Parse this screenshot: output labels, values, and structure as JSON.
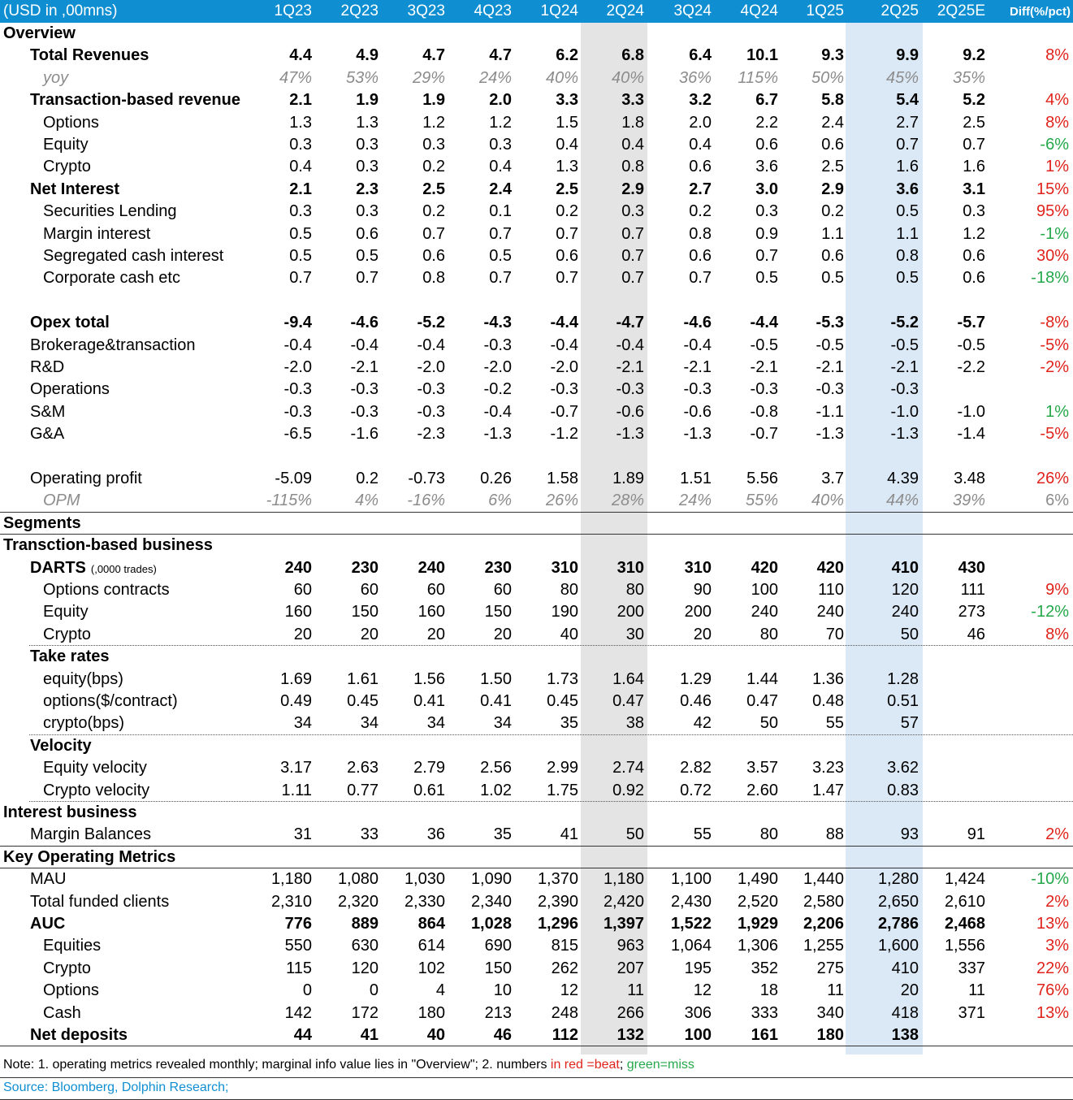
{
  "header": {
    "unit": "(USD in ,00mns)",
    "columns": [
      "1Q23",
      "2Q23",
      "3Q23",
      "4Q23",
      "1Q24",
      "2Q24",
      "3Q24",
      "4Q24",
      "1Q25",
      "2Q25",
      "2Q25E"
    ],
    "diff": "Diff(%/pct)"
  },
  "rows": [
    {
      "type": "section",
      "label": "Overview"
    },
    {
      "type": "data",
      "style": "bold",
      "indent": 1,
      "label": "Total Revenues",
      "values": [
        "4.4",
        "4.9",
        "4.7",
        "4.7",
        "6.2",
        "6.8",
        "6.4",
        "10.1",
        "9.3",
        "9.9",
        "9.2"
      ],
      "diff": "8%",
      "dc": "pos"
    },
    {
      "type": "data",
      "style": "italic",
      "indent": 2,
      "label": "yoy",
      "values": [
        "47%",
        "53%",
        "29%",
        "24%",
        "40%",
        "40%",
        "36%",
        "115%",
        "50%",
        "45%",
        "35%"
      ],
      "diff": "",
      "dc": ""
    },
    {
      "type": "data",
      "style": "bold",
      "indent": 1,
      "label": "Transaction-based revenue",
      "values": [
        "2.1",
        "1.9",
        "1.9",
        "2.0",
        "3.3",
        "3.3",
        "3.2",
        "6.7",
        "5.8",
        "5.4",
        "5.2"
      ],
      "diff": "4%",
      "dc": "pos"
    },
    {
      "type": "data",
      "style": "",
      "indent": 2,
      "label": "Options",
      "values": [
        "1.3",
        "1.3",
        "1.2",
        "1.2",
        "1.5",
        "1.8",
        "2.0",
        "2.2",
        "2.4",
        "2.7",
        "2.5"
      ],
      "diff": "8%",
      "dc": "pos"
    },
    {
      "type": "data",
      "style": "",
      "indent": 2,
      "label": "Equity",
      "values": [
        "0.3",
        "0.3",
        "0.3",
        "0.3",
        "0.4",
        "0.4",
        "0.4",
        "0.6",
        "0.6",
        "0.7",
        "0.7"
      ],
      "diff": "-6%",
      "dc": "neg"
    },
    {
      "type": "data",
      "style": "",
      "indent": 2,
      "label": "Crypto",
      "values": [
        "0.4",
        "0.3",
        "0.2",
        "0.4",
        "1.3",
        "0.8",
        "0.6",
        "3.6",
        "2.5",
        "1.6",
        "1.6"
      ],
      "diff": "1%",
      "dc": "pos"
    },
    {
      "type": "data",
      "style": "bold",
      "indent": 1,
      "label": "Net Interest",
      "values": [
        "2.1",
        "2.3",
        "2.5",
        "2.4",
        "2.5",
        "2.9",
        "2.7",
        "3.0",
        "2.9",
        "3.6",
        "3.1"
      ],
      "diff": "15%",
      "dc": "pos"
    },
    {
      "type": "data",
      "style": "",
      "indent": 2,
      "label": "Securities Lending",
      "values": [
        "0.3",
        "0.3",
        "0.2",
        "0.1",
        "0.2",
        "0.3",
        "0.2",
        "0.3",
        "0.2",
        "0.5",
        "0.3"
      ],
      "diff": "95%",
      "dc": "pos"
    },
    {
      "type": "data",
      "style": "",
      "indent": 2,
      "label": "Margin interest",
      "values": [
        "0.5",
        "0.6",
        "0.7",
        "0.7",
        "0.7",
        "0.7",
        "0.8",
        "0.9",
        "1.1",
        "1.1",
        "1.2"
      ],
      "diff": "-1%",
      "dc": "neg"
    },
    {
      "type": "data",
      "style": "",
      "indent": 2,
      "label": "Segregated cash interest",
      "values": [
        "0.5",
        "0.5",
        "0.6",
        "0.5",
        "0.6",
        "0.7",
        "0.6",
        "0.7",
        "0.6",
        "0.8",
        "0.6"
      ],
      "diff": "30%",
      "dc": "pos"
    },
    {
      "type": "data",
      "style": "",
      "indent": 2,
      "label": "Corporate cash etc",
      "values": [
        "0.7",
        "0.7",
        "0.8",
        "0.7",
        "0.7",
        "0.7",
        "0.7",
        "0.5",
        "0.5",
        "0.5",
        "0.6"
      ],
      "diff": "-18%",
      "dc": "neg"
    },
    {
      "type": "spacer"
    },
    {
      "type": "data",
      "style": "bold",
      "indent": 1,
      "label": "Opex total",
      "values": [
        "-9.4",
        "-4.6",
        "-5.2",
        "-4.3",
        "-4.4",
        "-4.7",
        "-4.6",
        "-4.4",
        "-5.3",
        "-5.2",
        "-5.7"
      ],
      "diff": "-8%",
      "dc": "pos"
    },
    {
      "type": "data",
      "style": "",
      "indent": 1,
      "label": "Brokerage&transaction",
      "values": [
        "-0.4",
        "-0.4",
        "-0.4",
        "-0.3",
        "-0.4",
        "-0.4",
        "-0.4",
        "-0.5",
        "-0.5",
        "-0.5",
        "-0.5"
      ],
      "diff": "-5%",
      "dc": "pos"
    },
    {
      "type": "data",
      "style": "",
      "indent": 1,
      "label": "R&D",
      "values": [
        "-2.0",
        "-2.1",
        "-2.0",
        "-2.0",
        "-2.0",
        "-2.1",
        "-2.1",
        "-2.1",
        "-2.1",
        "-2.1",
        "-2.2"
      ],
      "diff": "-2%",
      "dc": "pos"
    },
    {
      "type": "data",
      "style": "",
      "indent": 1,
      "label": "Operations",
      "values": [
        "-0.3",
        "-0.3",
        "-0.3",
        "-0.2",
        "-0.3",
        "-0.3",
        "-0.3",
        "-0.3",
        "-0.3",
        "-0.3",
        ""
      ],
      "diff": "",
      "dc": ""
    },
    {
      "type": "data",
      "style": "",
      "indent": 1,
      "label": "S&M",
      "values": [
        "-0.3",
        "-0.3",
        "-0.3",
        "-0.4",
        "-0.7",
        "-0.6",
        "-0.6",
        "-0.8",
        "-1.1",
        "-1.0",
        "-1.0"
      ],
      "diff": "1%",
      "dc": "neg"
    },
    {
      "type": "data",
      "style": "",
      "indent": 1,
      "label": "G&A",
      "values": [
        "-6.5",
        "-1.6",
        "-2.3",
        "-1.3",
        "-1.2",
        "-1.3",
        "-1.3",
        "-0.7",
        "-1.3",
        "-1.3",
        "-1.4"
      ],
      "diff": "-5%",
      "dc": "pos"
    },
    {
      "type": "spacer"
    },
    {
      "type": "data",
      "style": "",
      "indent": 1,
      "label": "Operating profit",
      "values": [
        "-5.09",
        "0.2",
        "-0.73",
        "0.26",
        "1.58",
        "1.89",
        "1.51",
        "5.56",
        "3.7",
        "4.39",
        "3.48"
      ],
      "diff": "26%",
      "dc": "pos"
    },
    {
      "type": "data",
      "style": "italic",
      "indent": 2,
      "label": "OPM",
      "values": [
        "-115%",
        "4%",
        "-16%",
        "6%",
        "26%",
        "28%",
        "24%",
        "55%",
        "40%",
        "44%",
        "39%"
      ],
      "diff": "6%",
      "dc": "pos",
      "lineAfter": "solid"
    },
    {
      "type": "section",
      "label": "Segments",
      "lineAfter": "solid"
    },
    {
      "type": "section",
      "label": "Transction-based business"
    },
    {
      "type": "data",
      "style": "bold",
      "indent": 1,
      "label": "DARTS",
      "note": "(,0000 trades)",
      "values": [
        "240",
        "230",
        "240",
        "230",
        "310",
        "310",
        "310",
        "420",
        "420",
        "410",
        "430"
      ],
      "diff": "",
      "dc": ""
    },
    {
      "type": "data",
      "style": "",
      "indent": 2,
      "label": "Options contracts",
      "values": [
        "60",
        "60",
        "60",
        "60",
        "80",
        "80",
        "90",
        "100",
        "110",
        "120",
        "111"
      ],
      "diff": "9%",
      "dc": "pos"
    },
    {
      "type": "data",
      "style": "",
      "indent": 2,
      "label": "Equity",
      "values": [
        "160",
        "150",
        "160",
        "150",
        "190",
        "200",
        "200",
        "240",
        "240",
        "240",
        "273"
      ],
      "diff": "-12%",
      "dc": "neg"
    },
    {
      "type": "data",
      "style": "",
      "indent": 2,
      "label": "Crypto",
      "values": [
        "20",
        "20",
        "20",
        "20",
        "40",
        "30",
        "20",
        "80",
        "70",
        "50",
        "46"
      ],
      "diff": "8%",
      "dc": "pos",
      "lineAfter": "dot"
    },
    {
      "type": "section",
      "label": "Take rates",
      "indent": 1
    },
    {
      "type": "data",
      "style": "",
      "indent": 2,
      "label": "equity(bps)",
      "values": [
        "1.69",
        "1.61",
        "1.56",
        "1.50",
        "1.73",
        "1.64",
        "1.29",
        "1.44",
        "1.36",
        "1.28",
        ""
      ],
      "diff": "",
      "dc": ""
    },
    {
      "type": "data",
      "style": "",
      "indent": 2,
      "label": "options($/contract)",
      "values": [
        "0.49",
        "0.45",
        "0.41",
        "0.41",
        "0.45",
        "0.47",
        "0.46",
        "0.47",
        "0.48",
        "0.51",
        ""
      ],
      "diff": "",
      "dc": ""
    },
    {
      "type": "data",
      "style": "",
      "indent": 2,
      "label": "crypto(bps)",
      "values": [
        "34",
        "34",
        "34",
        "34",
        "35",
        "38",
        "42",
        "50",
        "55",
        "57",
        ""
      ],
      "diff": "",
      "dc": "",
      "lineAfter": "dot"
    },
    {
      "type": "section",
      "label": "Velocity",
      "indent": 1
    },
    {
      "type": "data",
      "style": "",
      "indent": 2,
      "label": "Equity velocity",
      "values": [
        "3.17",
        "2.63",
        "2.79",
        "2.56",
        "2.99",
        "2.74",
        "2.82",
        "3.57",
        "3.23",
        "3.62",
        ""
      ],
      "diff": "",
      "dc": ""
    },
    {
      "type": "data",
      "style": "",
      "indent": 2,
      "label": "Crypto velocity",
      "values": [
        "1.11",
        "0.77",
        "0.61",
        "1.02",
        "1.75",
        "0.92",
        "0.72",
        "2.60",
        "1.47",
        "0.83",
        ""
      ],
      "diff": "",
      "dc": "",
      "lineAfter": "dot"
    },
    {
      "type": "section",
      "label": "Interest business"
    },
    {
      "type": "data",
      "style": "",
      "indent": 1,
      "label": "Margin Balances",
      "values": [
        "31",
        "33",
        "36",
        "35",
        "41",
        "50",
        "55",
        "80",
        "88",
        "93",
        "91"
      ],
      "diff": "2%",
      "dc": "pos",
      "lineAfter": "solid"
    },
    {
      "type": "section",
      "label": "Key Operating Metrics",
      "lineAfter": "solid"
    },
    {
      "type": "data",
      "style": "",
      "indent": 1,
      "label": "MAU",
      "values": [
        "1,180",
        "1,080",
        "1,030",
        "1,090",
        "1,370",
        "1,180",
        "1,100",
        "1,490",
        "1,440",
        "1,280",
        "1,424"
      ],
      "diff": "-10%",
      "dc": "neg"
    },
    {
      "type": "data",
      "style": "",
      "indent": 1,
      "label": "Total funded clients",
      "values": [
        "2,310",
        "2,320",
        "2,330",
        "2,340",
        "2,390",
        "2,420",
        "2,430",
        "2,520",
        "2,580",
        "2,650",
        "2,610"
      ],
      "diff": "2%",
      "dc": "pos"
    },
    {
      "type": "data",
      "style": "bold",
      "indent": 1,
      "label": "AUC",
      "values": [
        "776",
        "889",
        "864",
        "1,028",
        "1,296",
        "1,397",
        "1,522",
        "1,929",
        "2,206",
        "2,786",
        "2,468"
      ],
      "diff": "13%",
      "dc": "pos"
    },
    {
      "type": "data",
      "style": "",
      "indent": 2,
      "label": "Equities",
      "values": [
        "550",
        "630",
        "614",
        "690",
        "815",
        "963",
        "1,064",
        "1,306",
        "1,255",
        "1,600",
        "1,556"
      ],
      "diff": "3%",
      "dc": "pos"
    },
    {
      "type": "data",
      "style": "",
      "indent": 2,
      "label": "Crypto",
      "values": [
        "115",
        "120",
        "102",
        "150",
        "262",
        "207",
        "195",
        "352",
        "275",
        "410",
        "337"
      ],
      "diff": "22%",
      "dc": "pos"
    },
    {
      "type": "data",
      "style": "",
      "indent": 2,
      "label": "Options",
      "values": [
        "0",
        "0",
        "4",
        "10",
        "12",
        "11",
        "12",
        "18",
        "11",
        "20",
        "11"
      ],
      "diff": "76%",
      "dc": "pos"
    },
    {
      "type": "data",
      "style": "",
      "indent": 2,
      "label": "Cash",
      "values": [
        "142",
        "172",
        "180",
        "213",
        "248",
        "266",
        "306",
        "333",
        "340",
        "418",
        "371"
      ],
      "diff": "13%",
      "dc": "pos"
    },
    {
      "type": "data",
      "style": "bold",
      "indent": 1,
      "label": "Net deposits",
      "values": [
        "44",
        "41",
        "40",
        "46",
        "112",
        "132",
        "100",
        "161",
        "180",
        "138",
        ""
      ],
      "diff": "",
      "dc": "",
      "lineAfter": "solid"
    }
  ],
  "footer": {
    "note_a": "Note: 1. operating metrics revealed monthly; marginal info value lies in \"Overview\";  2. numbers ",
    "note_red": "in red =beat",
    "note_sep": "; ",
    "note_green": "green=miss",
    "source": "Source: Bloomberg, Dolphin Research;"
  },
  "colors": {
    "header_bg": "#0f8fd1",
    "beat": "#e0231b",
    "miss": "#24a84a",
    "col_2q24": "#e4e4e4",
    "col_2q25": "#dbe8f6"
  }
}
